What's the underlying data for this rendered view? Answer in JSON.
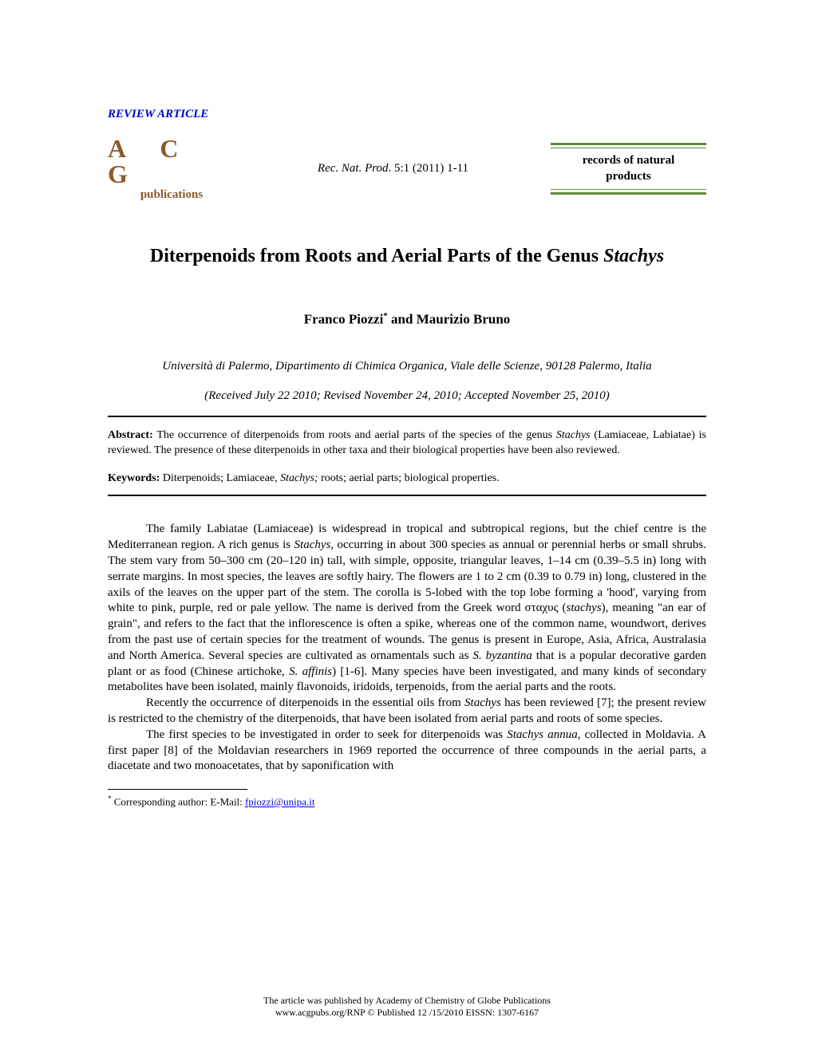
{
  "article_type": "REVIEW ARTICLE",
  "logo": {
    "top": "A C G",
    "bottom": "publications"
  },
  "citation": {
    "journal_abbrev": "Rec. Nat. Prod",
    "vol_issue_pages": ". 5:1 (2011) 1-11"
  },
  "journal_box": {
    "line1": "records of natural",
    "line2": "products"
  },
  "title": {
    "main": "Diterpenoids from Roots and Aerial Parts of the Genus ",
    "italic": "Stachys"
  },
  "authors": {
    "a1": "Franco Piozzi",
    "sup": "*",
    "join": " and ",
    "a2": "Maurizio Bruno"
  },
  "affiliation": "Università di Palermo, Dipartimento di Chimica Organica, Viale delle Scienze, 90128 Palermo, Italia",
  "dates": "(Received July 22 2010; Revised November 24, 2010; Accepted November 25, 2010)",
  "abstract": {
    "label": "Abstract:",
    "text_before": " The occurrence of diterpenoids from roots and aerial parts of the species of the genus ",
    "genus": "Stachys",
    "text_after": " (Lamiaceae, Labiatae) is reviewed. The presence of these diterpenoids in other taxa and their biological properties have been also reviewed."
  },
  "keywords": {
    "label": "Keywords:",
    "text_before": " Diterpenoids; Lamiaceae",
    "italic": ", Stachys;",
    "text_after": " roots; aerial parts; biological properties."
  },
  "body": {
    "p1a": "The family Labiatae (Lamiaceae) is widespread in tropical and subtropical regions, but the chief centre is the Mediterranean region. A rich genus is ",
    "p1b": "Stachys",
    "p1c": ", occurring in about 300 species as annual or perennial herbs or small shrubs. The stem vary from 50–300 cm (20–120 in) tall, with simple, opposite, triangular leaves, 1–14 cm (0.39–5.5 in) long with serrate margins. In most species, the leaves are softly hairy. The flowers are 1 to 2 cm (0.39 to 0.79 in) long, clustered in the axils of the leaves on the upper part of the stem. The corolla is 5-lobed with the top lobe forming a 'hood', varying from white to pink, purple, red or pale yellow. The name is derived from the Greek word σταχυς (",
    "p1d": "stachys",
    "p1e": "), meaning \"an ear of grain\", and refers to the fact that the inflorescence is often a spike, whereas one of the common name, woundwort, derives from the past use of certain species for the treatment of wounds. The genus is present in Europe, Asia, Africa, Australasia and North America. Several species are cultivated as ornamentals such as ",
    "p1f": "S. byzantina",
    "p1g": " that is a popular decorative garden plant or as food (Chinese artichoke, ",
    "p1h": "S. affinis",
    "p1i": ") [1-6]. Many species have been investigated, and many kinds of secondary metabolites have been isolated, mainly flavonoids, iridoids, terpenoids, from the aerial parts and the roots.",
    "p2a": "Recently the occurrence of diterpenoids in the essential oils from ",
    "p2b": "Stachys",
    "p2c": " has been reviewed [7]; the present review is restricted to the chemistry of the diterpenoids, that have been isolated from aerial parts and roots of some species.",
    "p3a": "The first species to be investigated in order to seek for diterpenoids was ",
    "p3b": "Stachys annua",
    "p3c": ", collected in Moldavia. A first paper [8] of the Moldavian researchers in 1969 reported the occurrence of three compounds in the aerial parts, a diacetate and two monoacetates, that by saponification with"
  },
  "footnote": {
    "sup": "*",
    "label": " Corresponding author:  E-Mail: ",
    "email": "fpiozzi@unipa.it"
  },
  "footer": {
    "line1": "The article was published by Academy of Chemistry of Globe Publications",
    "line2": "www.acgpubs.org/RNP © Published  12 /15/2010 EISSN: 1307-6167"
  }
}
